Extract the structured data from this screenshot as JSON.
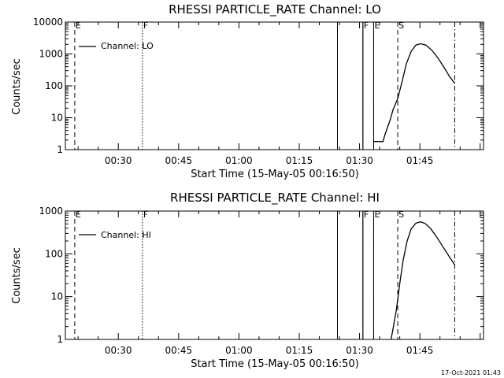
{
  "timestamp": "17-Oct-2021 01:43",
  "chart_data": [
    {
      "type": "line",
      "title": "RHESSI PARTICLE_RATE Channel: LO",
      "xlabel": "Start Time (15-May-05 00:16:50)",
      "ylabel": "Counts/sec",
      "yscale": "log",
      "ylim": [
        1,
        10000
      ],
      "y_ticks": [
        1,
        10,
        100,
        1000,
        10000
      ],
      "y_tick_labels": [
        "1",
        "10",
        "100",
        "1000",
        "10000"
      ],
      "x_ticks": [
        "00:30",
        "00:45",
        "01:00",
        "01:15",
        "01:30",
        "01:45"
      ],
      "xlim": [
        "00:16:50",
        "02:00:50"
      ],
      "legend": {
        "label": "Channel: LO",
        "placement": "top-left"
      },
      "markers": [
        {
          "label": "E",
          "time": "00:19:10",
          "style": "dashed"
        },
        {
          "label": "F",
          "time": "00:36:00",
          "style": "dotted"
        },
        {
          "label": "F",
          "time": "01:30:50",
          "style": "solid"
        },
        {
          "label": "E",
          "time": "01:33:30",
          "style": "dotted"
        },
        {
          "label": "S",
          "time": "01:39:30",
          "style": "dashed"
        },
        {
          "label": "",
          "time": "01:53:40",
          "style": "dashdot"
        }
      ],
      "spikes": [
        {
          "time": "01:24:30",
          "from": 1,
          "to": 10000
        },
        {
          "time": "01:30:50",
          "from": 1,
          "to": 10000
        },
        {
          "time": "01:33:30",
          "from": 1,
          "to": 10000
        }
      ],
      "series": [
        {
          "points": [
            [
              "01:33:30",
              1.8
            ],
            [
              "01:35:50",
              1.8
            ],
            [
              "01:36:20",
              3
            ],
            [
              "01:36:50",
              4.5
            ],
            [
              "01:37:40",
              9
            ],
            [
              "01:38:20",
              18
            ],
            [
              "01:39:30",
              40
            ],
            [
              "01:40:40",
              150
            ],
            [
              "01:41:40",
              500
            ],
            [
              "01:42:50",
              1200
            ],
            [
              "01:44:00",
              1900
            ],
            [
              "01:45:10",
              2100
            ],
            [
              "01:46:30",
              1900
            ],
            [
              "01:48:00",
              1300
            ],
            [
              "01:49:30",
              750
            ],
            [
              "01:51:00",
              380
            ],
            [
              "01:52:20",
              200
            ],
            [
              "01:53:40",
              120
            ]
          ]
        }
      ]
    },
    {
      "type": "line",
      "title": "RHESSI PARTICLE_RATE Channel: HI",
      "xlabel": "Start Time (15-May-05 00:16:50)",
      "ylabel": "Counts/sec",
      "yscale": "log",
      "ylim": [
        1,
        1000
      ],
      "y_ticks": [
        1,
        10,
        100,
        1000
      ],
      "y_tick_labels": [
        "1",
        "10",
        "100",
        "1000"
      ],
      "x_ticks": [
        "00:30",
        "00:45",
        "01:00",
        "01:15",
        "01:30",
        "01:45"
      ],
      "xlim": [
        "00:16:50",
        "02:00:50"
      ],
      "legend": {
        "label": "Channel: HI",
        "placement": "top-left"
      },
      "markers": [
        {
          "label": "E",
          "time": "00:19:10",
          "style": "dashed"
        },
        {
          "label": "F",
          "time": "00:36:00",
          "style": "dotted"
        },
        {
          "label": "F",
          "time": "01:30:50",
          "style": "solid"
        },
        {
          "label": "E",
          "time": "01:33:30",
          "style": "dotted"
        },
        {
          "label": "S",
          "time": "01:39:30",
          "style": "dashed"
        },
        {
          "label": "",
          "time": "01:53:40",
          "style": "dashdot"
        }
      ],
      "spikes": [
        {
          "time": "01:24:30",
          "from": 1,
          "to": 1000
        },
        {
          "time": "01:30:50",
          "from": 1,
          "to": 1000
        },
        {
          "time": "01:33:30",
          "from": 1,
          "to": 1000
        }
      ],
      "series": [
        {
          "points": [
            [
              "01:37:50",
              1
            ],
            [
              "01:38:30",
              2.2
            ],
            [
              "01:39:10",
              5
            ],
            [
              "01:40:00",
              20
            ],
            [
              "01:40:50",
              70
            ],
            [
              "01:41:50",
              200
            ],
            [
              "01:42:50",
              380
            ],
            [
              "01:44:00",
              520
            ],
            [
              "01:45:10",
              560
            ],
            [
              "01:46:20",
              510
            ],
            [
              "01:47:40",
              390
            ],
            [
              "01:49:10",
              250
            ],
            [
              "01:50:40",
              150
            ],
            [
              "01:52:10",
              90
            ],
            [
              "01:53:40",
              55
            ]
          ]
        }
      ]
    }
  ]
}
